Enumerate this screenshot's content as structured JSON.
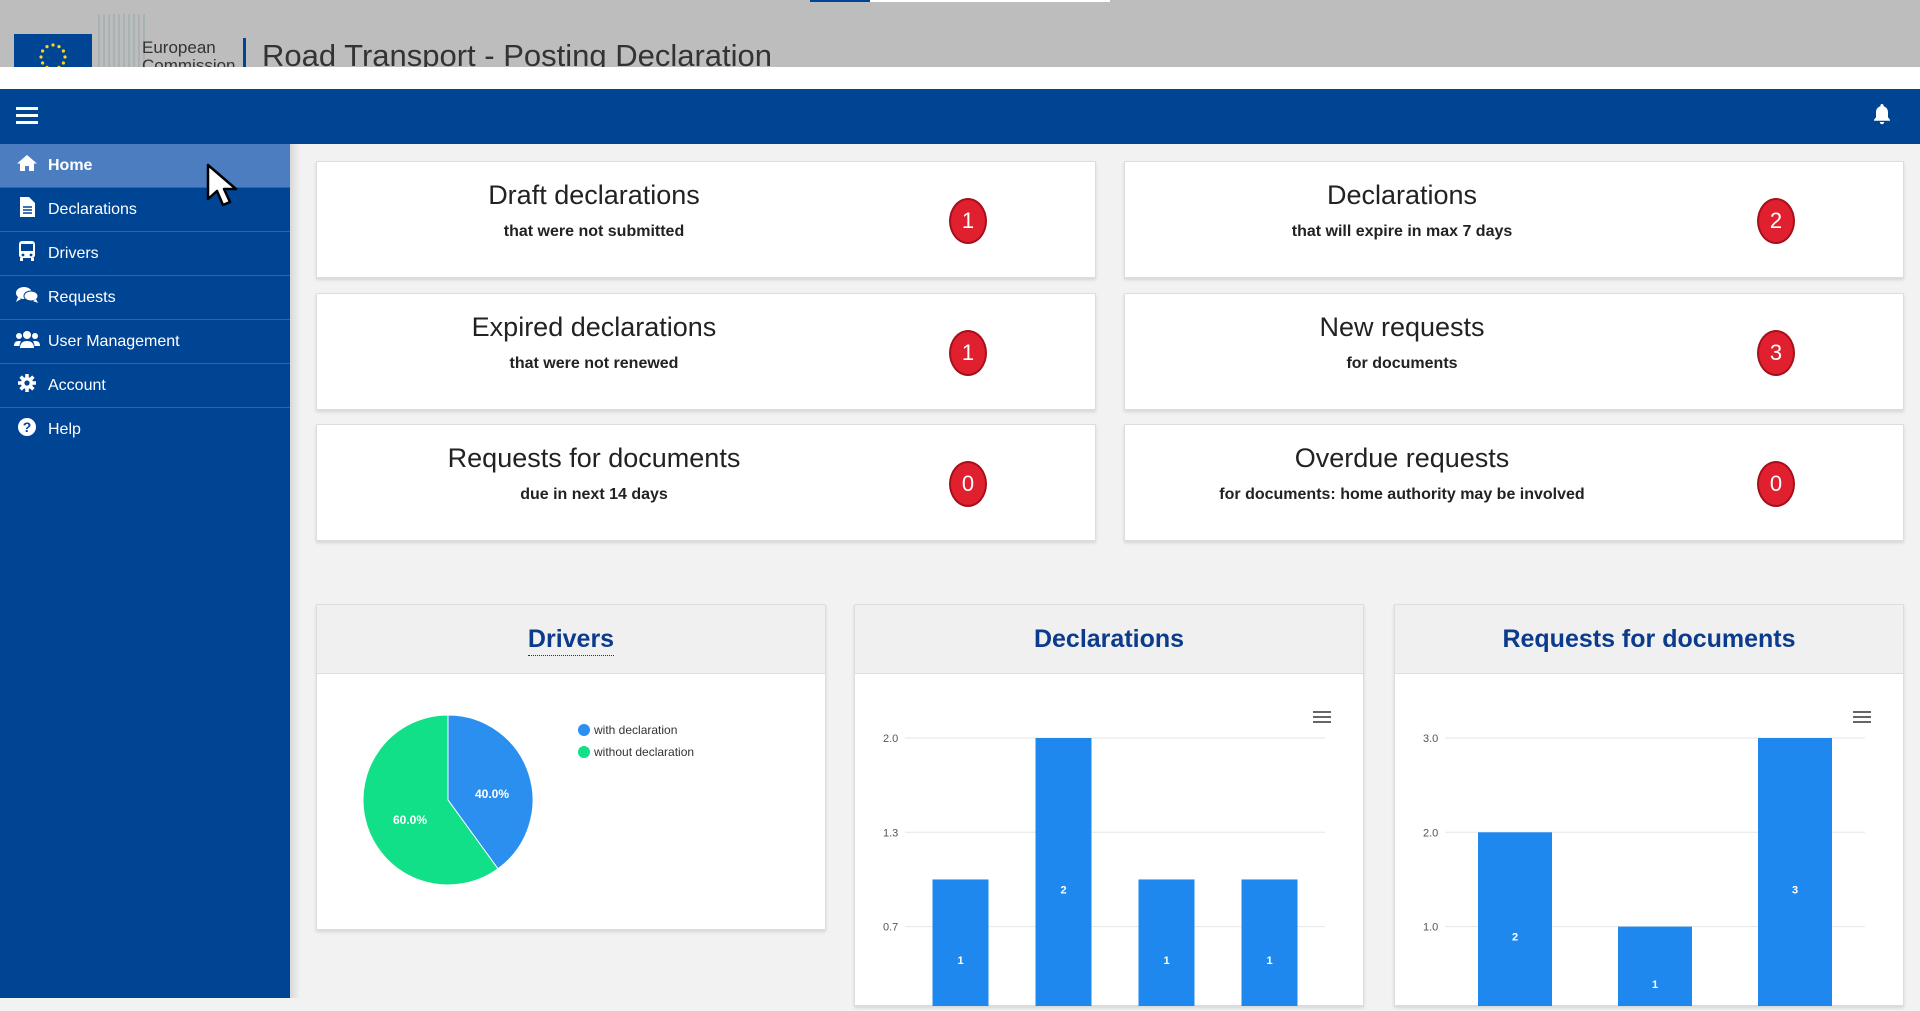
{
  "header": {
    "org_line1": "European",
    "org_line2": "Commission",
    "app_title": "Road Transport - Posting Declaration"
  },
  "icons": {
    "menu": "hamburger-icon",
    "notifications": "bell-icon",
    "cursor": "mouse-pointer-icon"
  },
  "sidebar": {
    "items": [
      {
        "label": "Home",
        "icon": "home-icon"
      },
      {
        "label": "Declarations",
        "icon": "document-icon"
      },
      {
        "label": "Drivers",
        "icon": "bus-icon"
      },
      {
        "label": "Requests",
        "icon": "comments-icon"
      },
      {
        "label": "User Management",
        "icon": "users-icon"
      },
      {
        "label": "Account",
        "icon": "gear-icon"
      },
      {
        "label": "Help",
        "icon": "question-icon"
      }
    ]
  },
  "cards": [
    {
      "title": "Draft declarations",
      "subtitle": "that were not submitted",
      "count": "1"
    },
    {
      "title": "Declarations",
      "subtitle": "that will expire in max 7 days",
      "count": "2"
    },
    {
      "title": "Expired declarations",
      "subtitle": "that were not renewed",
      "count": "1"
    },
    {
      "title": "New requests",
      "subtitle": "for documents",
      "count": "3"
    },
    {
      "title": "Requests for documents",
      "subtitle": "due in next 14 days",
      "count": "0"
    },
    {
      "title": "Overdue requests",
      "subtitle": "for documents: home authority may be involved",
      "count": "0"
    }
  ],
  "colors": {
    "brand": "#004494",
    "badge": "#e0202e",
    "bar": "#1e88ee",
    "pie_with": "#2b8ff0",
    "pie_without": "#12e088"
  },
  "chart_data": [
    {
      "type": "pie",
      "title": "Drivers",
      "slices": [
        {
          "name": "with declaration",
          "value": 40.0,
          "label": "40.0%"
        },
        {
          "name": "without declaration",
          "value": 60.0,
          "label": "60.0%"
        }
      ],
      "legend": "right"
    },
    {
      "type": "bar",
      "title": "Declarations",
      "ticks": [
        "2.0",
        "1.3",
        "0.7"
      ],
      "ylim": [
        0,
        2
      ],
      "values": [
        1,
        2,
        1,
        1
      ],
      "labels": [
        "1",
        "2",
        "1",
        "1"
      ]
    },
    {
      "type": "bar",
      "title": "Requests for documents",
      "ticks": [
        "3.0",
        "2.0",
        "1.0"
      ],
      "ylim": [
        0,
        3
      ],
      "values": [
        2,
        1,
        3
      ],
      "labels": [
        "2",
        "1",
        "3"
      ]
    }
  ]
}
